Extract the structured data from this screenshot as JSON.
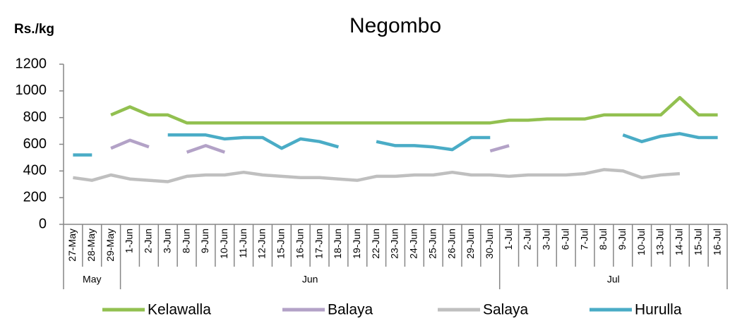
{
  "chart_data": {
    "type": "line",
    "title": "Negombo",
    "y_label": "Rs./kg",
    "categories": [
      "27-May",
      "28-May",
      "29-May",
      "1-Jun",
      "2-Jun",
      "3-Jun",
      "8-Jun",
      "9-Jun",
      "10-Jun",
      "11-Jun",
      "12-Jun",
      "15-Jun",
      "16-Jun",
      "17-Jun",
      "18-Jun",
      "19-Jun",
      "22-Jun",
      "23-Jun",
      "24-Jun",
      "25-Jun",
      "26-Jun",
      "29-Jun",
      "30-Jun",
      "1-Jul",
      "2-Jul",
      "3-Jul",
      "6-Jul",
      "7-Jul",
      "8-Jul",
      "9-Jul",
      "10-Jul",
      "13-Jul",
      "14-Jul",
      "15-Jul",
      "16-Jul"
    ],
    "months": [
      "May",
      "Jun",
      "Jul"
    ],
    "series": [
      {
        "name": "Kelawalla",
        "color": "#92c050",
        "values": [
          null,
          null,
          820,
          880,
          820,
          820,
          760,
          760,
          760,
          760,
          760,
          760,
          760,
          760,
          760,
          760,
          760,
          760,
          760,
          760,
          760,
          760,
          760,
          780,
          780,
          790,
          790,
          790,
          820,
          820,
          820,
          820,
          950,
          820,
          820
        ]
      },
      {
        "name": "Balaya",
        "color": "#b3a2c7",
        "values": [
          null,
          null,
          570,
          630,
          580,
          null,
          540,
          590,
          540,
          null,
          null,
          null,
          null,
          null,
          null,
          null,
          null,
          null,
          null,
          null,
          null,
          null,
          550,
          590,
          null,
          null,
          null,
          null,
          null,
          null,
          null,
          null,
          null,
          null,
          null
        ]
      },
      {
        "name": "Salaya",
        "color": "#bfbfbf",
        "values": [
          350,
          330,
          370,
          340,
          330,
          320,
          360,
          370,
          370,
          390,
          370,
          360,
          350,
          350,
          340,
          330,
          360,
          360,
          370,
          370,
          390,
          370,
          370,
          360,
          370,
          370,
          370,
          380,
          410,
          400,
          350,
          370,
          380,
          null,
          null
        ]
      },
      {
        "name": "Hurulla",
        "color": "#4aacc6",
        "values": [
          520,
          520,
          null,
          null,
          null,
          670,
          670,
          670,
          640,
          650,
          650,
          570,
          640,
          620,
          580,
          null,
          620,
          590,
          590,
          580,
          560,
          650,
          650,
          null,
          null,
          null,
          null,
          null,
          null,
          670,
          620,
          660,
          680,
          650,
          650
        ]
      }
    ],
    "ylim": [
      0,
      1200
    ],
    "yticks": [
      0,
      200,
      400,
      600,
      800,
      1000,
      1200
    ]
  }
}
